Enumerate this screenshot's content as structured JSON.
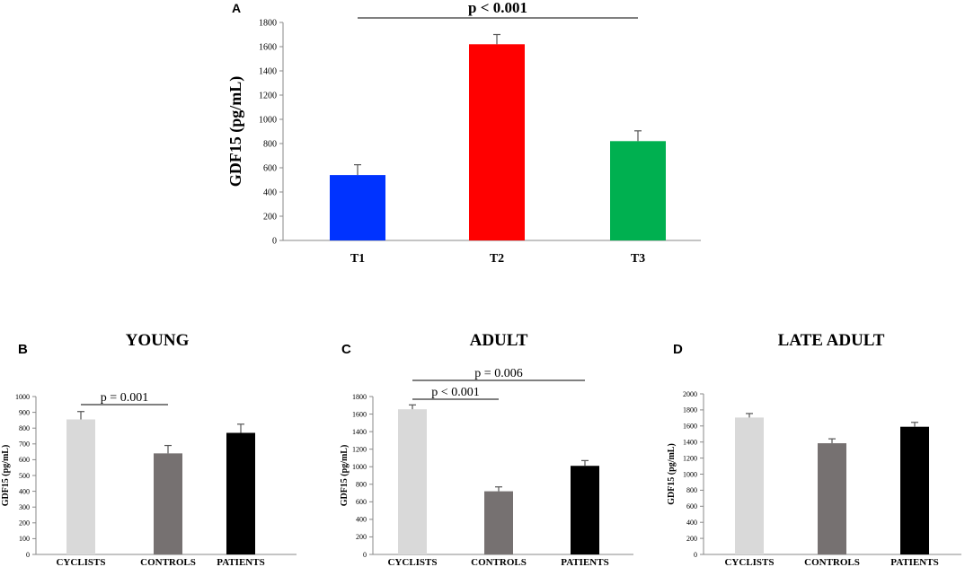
{
  "chart_data": [
    {
      "panel": "A",
      "type": "bar",
      "title": "",
      "categories": [
        "T1",
        "T2",
        "T3"
      ],
      "values": [
        540,
        1620,
        820
      ],
      "errors": [
        85,
        80,
        85
      ],
      "colors": [
        "#0033ff",
        "#ff0000",
        "#00b050"
      ],
      "ylabel": "GDF15 (pg/mL)",
      "xlabel": "",
      "ylim": [
        0,
        1800
      ],
      "yticks": [
        "0",
        "200",
        "400",
        "600",
        "800",
        "1000",
        "1200",
        "1400",
        "1600",
        "1800"
      ],
      "significance": [
        {
          "from": 0,
          "to": 2,
          "label": "p < 0.001"
        }
      ]
    },
    {
      "panel": "B",
      "type": "bar",
      "title": "YOUNG",
      "categories": [
        "CYCLISTS",
        "CONTROLS",
        "PATIENTS"
      ],
      "values": [
        855,
        640,
        770
      ],
      "errors": [
        50,
        50,
        55
      ],
      "colors": [
        "#d9d9d9",
        "#767171",
        "#000000"
      ],
      "ylabel": "GDF15 (pg/mL)",
      "xlabel": "",
      "ylim": [
        0,
        1000
      ],
      "yticks": [
        "0",
        "100",
        "200",
        "300",
        "400",
        "500",
        "600",
        "700",
        "800",
        "900",
        "1000"
      ],
      "significance": [
        {
          "from": 0,
          "to": 1,
          "label": "p = 0.001"
        }
      ]
    },
    {
      "panel": "C",
      "type": "bar",
      "title": "ADULT",
      "categories": [
        "CYCLISTS",
        "CONTROLS",
        "PATIENTS"
      ],
      "values": [
        1655,
        720,
        1010
      ],
      "errors": [
        50,
        50,
        60
      ],
      "colors": [
        "#d9d9d9",
        "#767171",
        "#000000"
      ],
      "ylabel": "GDF15 (pg/mL)",
      "xlabel": "",
      "ylim": [
        0,
        1800
      ],
      "yticks": [
        "0",
        "200",
        "400",
        "600",
        "800",
        "1000",
        "1200",
        "1400",
        "1600",
        "1800"
      ],
      "significance": [
        {
          "from": 0,
          "to": 1,
          "label": "p < 0.001"
        },
        {
          "from": 0,
          "to": 2,
          "label": "p = 0.006"
        }
      ]
    },
    {
      "panel": "D",
      "type": "bar",
      "title": "LATE ADULT",
      "categories": [
        "CYCLISTS",
        "CONTROLS",
        "PATIENTS"
      ],
      "values": [
        1705,
        1385,
        1590
      ],
      "errors": [
        50,
        55,
        55
      ],
      "colors": [
        "#d9d9d9",
        "#767171",
        "#000000"
      ],
      "ylabel": "GDF15 (pg/mL)",
      "xlabel": "",
      "ylim": [
        0,
        2000
      ],
      "yticks": [
        "0",
        "200",
        "400",
        "600",
        "800",
        "1000",
        "1200",
        "1400",
        "1600",
        "1800",
        "2000"
      ],
      "significance": []
    }
  ]
}
